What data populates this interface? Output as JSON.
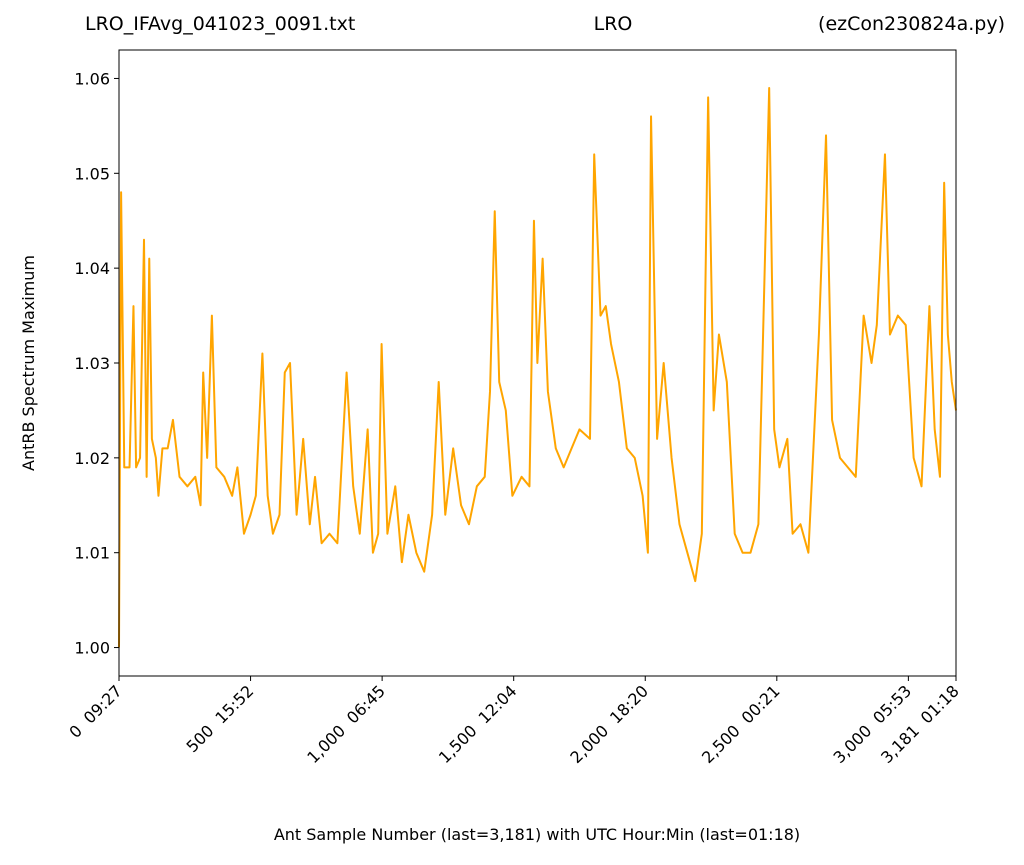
{
  "chart_data": {
    "type": "line",
    "title_left": "LRO_IFAvg_041023_0091.txt",
    "title_center": "LRO",
    "title_right": "(ezCon230824a.py)",
    "x_label": "Ant Sample Number (last=3,181) with UTC Hour:Min (last=01:18)",
    "y_label": "AntRB Spectrum Maximum",
    "xlim": [
      0,
      3181
    ],
    "ylim": [
      0.997,
      1.063
    ],
    "xticks": [
      {
        "value": 0,
        "label": "0  09:27"
      },
      {
        "value": 500,
        "label": "500  15:52"
      },
      {
        "value": 1000,
        "label": "1,000  06:45"
      },
      {
        "value": 1500,
        "label": "1,500  12:04"
      },
      {
        "value": 2000,
        "label": "2,000  18:20"
      },
      {
        "value": 2500,
        "label": "2,500  00:21"
      },
      {
        "value": 3000,
        "label": "3,000  05:53"
      },
      {
        "value": 3181,
        "label": "3,181  01:18"
      }
    ],
    "yticks": [
      {
        "value": 1,
        "label": "1.00"
      },
      1.01,
      1.02,
      1.03,
      1.04,
      1.05,
      1.06
    ],
    "grid": false,
    "series": [
      {
        "name": "AntRB Spectrum Maximum",
        "color": "#ffa500",
        "x": [
          0,
          8,
          20,
          40,
          55,
          65,
          80,
          95,
          105,
          115,
          125,
          140,
          150,
          165,
          185,
          205,
          230,
          260,
          290,
          310,
          320,
          335,
          353,
          370,
          400,
          430,
          450,
          475,
          500,
          520,
          545,
          565,
          585,
          610,
          630,
          650,
          675,
          700,
          725,
          745,
          770,
          800,
          830,
          865,
          890,
          915,
          945,
          965,
          985,
          998,
          1020,
          1050,
          1075,
          1100,
          1130,
          1160,
          1190,
          1215,
          1240,
          1270,
          1300,
          1330,
          1360,
          1390,
          1410,
          1428,
          1445,
          1470,
          1495,
          1530,
          1560,
          1577,
          1590,
          1610,
          1630,
          1660,
          1690,
          1720,
          1750,
          1790,
          1806,
          1830,
          1850,
          1870,
          1900,
          1930,
          1960,
          1990,
          2010,
          2022,
          2045,
          2070,
          2100,
          2130,
          2160,
          2190,
          2215,
          2239,
          2260,
          2280,
          2310,
          2340,
          2370,
          2400,
          2430,
          2471,
          2490,
          2510,
          2540,
          2560,
          2590,
          2620,
          2660,
          2687,
          2710,
          2740,
          2770,
          2800,
          2830,
          2860,
          2880,
          2911,
          2930,
          2960,
          2990,
          3020,
          3050,
          3080,
          3100,
          3120,
          3136,
          3150,
          3165,
          3181
        ],
        "values": [
          1.0,
          1.048,
          1.019,
          1.019,
          1.036,
          1.019,
          1.02,
          1.043,
          1.018,
          1.041,
          1.022,
          1.02,
          1.016,
          1.021,
          1.021,
          1.024,
          1.018,
          1.017,
          1.018,
          1.015,
          1.029,
          1.02,
          1.035,
          1.019,
          1.018,
          1.016,
          1.019,
          1.012,
          1.014,
          1.016,
          1.031,
          1.016,
          1.012,
          1.014,
          1.029,
          1.03,
          1.014,
          1.022,
          1.013,
          1.018,
          1.011,
          1.012,
          1.011,
          1.029,
          1.017,
          1.012,
          1.023,
          1.01,
          1.012,
          1.032,
          1.012,
          1.017,
          1.009,
          1.014,
          1.01,
          1.008,
          1.014,
          1.028,
          1.014,
          1.021,
          1.015,
          1.013,
          1.017,
          1.018,
          1.027,
          1.046,
          1.028,
          1.025,
          1.016,
          1.018,
          1.017,
          1.045,
          1.03,
          1.041,
          1.027,
          1.021,
          1.019,
          1.021,
          1.023,
          1.022,
          1.052,
          1.035,
          1.036,
          1.032,
          1.028,
          1.021,
          1.02,
          1.016,
          1.01,
          1.056,
          1.022,
          1.03,
          1.02,
          1.013,
          1.01,
          1.007,
          1.012,
          1.058,
          1.025,
          1.033,
          1.028,
          1.012,
          1.01,
          1.01,
          1.013,
          1.059,
          1.023,
          1.019,
          1.022,
          1.012,
          1.013,
          1.01,
          1.033,
          1.054,
          1.024,
          1.02,
          1.019,
          1.018,
          1.035,
          1.03,
          1.034,
          1.052,
          1.033,
          1.035,
          1.034,
          1.02,
          1.017,
          1.036,
          1.023,
          1.018,
          1.049,
          1.033,
          1.028,
          1.025
        ]
      }
    ]
  }
}
